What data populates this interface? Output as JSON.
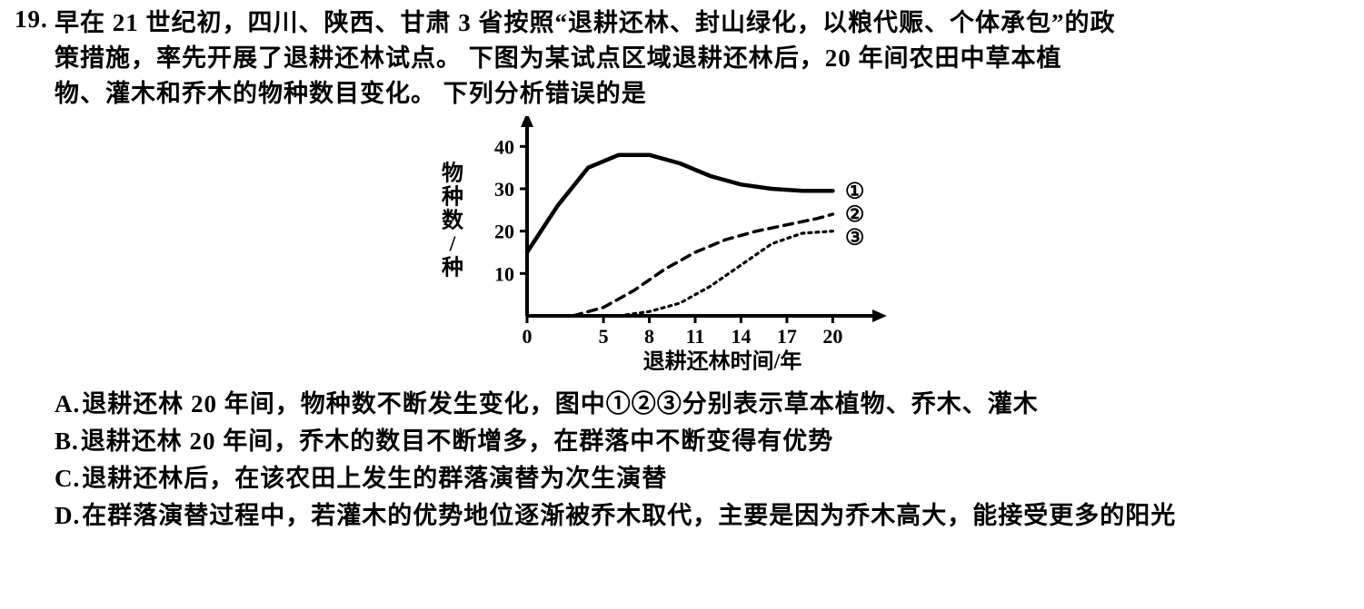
{
  "question": {
    "number": "19.",
    "stem_line1": "早在 21 世纪初，四川、陕西、甘肃 3 省按照“退耕还林、封山绿化，以粮代赈、个体承包”的政",
    "stem_line2": "策措施，率先开展了退耕还林试点。 下图为某试点区域退耕还林后，20 年间农田中草本植",
    "stem_line3": "物、灌木和乔木的物种数目变化。 下列分析错误的是"
  },
  "chart": {
    "type": "line",
    "background_color": "#ffffff",
    "axis_color": "#000000",
    "axis_line_width": 4,
    "arrow_size": 12,
    "xlabel": "退耕还林时间/年",
    "ylabel": "物种数/种",
    "label_fontsize": 24,
    "tick_fontsize": 22,
    "x_ticks": [
      0,
      5,
      8,
      11,
      14,
      17,
      20
    ],
    "y_ticks": [
      10,
      20,
      30,
      40
    ],
    "xlim": [
      0,
      22
    ],
    "ylim": [
      0,
      45
    ],
    "series": [
      {
        "id": 1,
        "marker_label": "①",
        "stroke": "#000000",
        "stroke_width": 4.5,
        "dash": "",
        "points": [
          {
            "x": 0,
            "y": 15
          },
          {
            "x": 2,
            "y": 26
          },
          {
            "x": 4,
            "y": 35
          },
          {
            "x": 6,
            "y": 38
          },
          {
            "x": 8,
            "y": 38
          },
          {
            "x": 10,
            "y": 36
          },
          {
            "x": 12,
            "y": 33
          },
          {
            "x": 14,
            "y": 31
          },
          {
            "x": 16,
            "y": 30
          },
          {
            "x": 18,
            "y": 29.5
          },
          {
            "x": 20,
            "y": 29.5
          }
        ]
      },
      {
        "id": 2,
        "marker_label": "②",
        "stroke": "#000000",
        "stroke_width": 3.5,
        "dash": "10 7",
        "points": [
          {
            "x": 3,
            "y": 0
          },
          {
            "x": 5,
            "y": 2
          },
          {
            "x": 7,
            "y": 6
          },
          {
            "x": 9,
            "y": 11
          },
          {
            "x": 11,
            "y": 15
          },
          {
            "x": 13,
            "y": 18
          },
          {
            "x": 15,
            "y": 20
          },
          {
            "x": 17,
            "y": 21.5
          },
          {
            "x": 19,
            "y": 23
          },
          {
            "x": 20,
            "y": 24
          }
        ]
      },
      {
        "id": 3,
        "marker_label": "③",
        "stroke": "#000000",
        "stroke_width": 3.2,
        "dash": "3 5",
        "points": [
          {
            "x": 6,
            "y": 0
          },
          {
            "x": 8,
            "y": 1
          },
          {
            "x": 10,
            "y": 3
          },
          {
            "x": 12,
            "y": 7
          },
          {
            "x": 14,
            "y": 12
          },
          {
            "x": 16,
            "y": 17
          },
          {
            "x": 18,
            "y": 19.5
          },
          {
            "x": 20,
            "y": 20
          }
        ]
      }
    ],
    "end_labels": [
      {
        "series": 1,
        "text": "①",
        "y": 29.5
      },
      {
        "series": 2,
        "text": "②",
        "y": 24
      },
      {
        "series": 3,
        "text": "③",
        "y": 18.5
      }
    ]
  },
  "options": {
    "A": {
      "label": "A.",
      "text": "退耕还林 20 年间，物种数不断发生变化，图中①②③分别表示草本植物、乔木、灌木"
    },
    "B": {
      "label": "B.",
      "text": "退耕还林 20 年间，乔木的数目不断增多，在群落中不断变得有优势"
    },
    "C": {
      "label": "C.",
      "text": "退耕还林后，在该农田上发生的群落演替为次生演替"
    },
    "D": {
      "label": "D.",
      "text": "在群落演替过程中，若灌木的优势地位逐渐被乔木取代，主要是因为乔木高大，能接受更多的阳光"
    }
  }
}
